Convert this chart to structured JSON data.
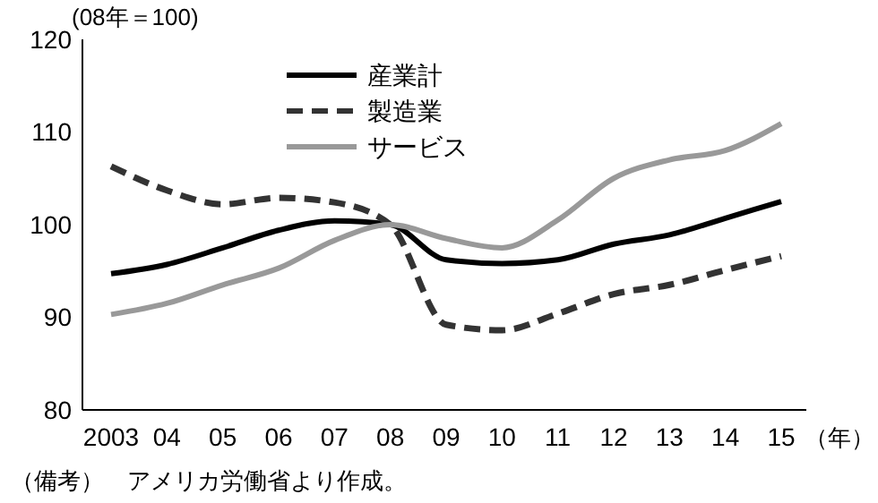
{
  "chart_data": {
    "type": "line",
    "ylabel": "(08年＝100)",
    "xlabel": "（年）",
    "categories": [
      "2003",
      "04",
      "05",
      "06",
      "07",
      "08",
      "09",
      "10",
      "11",
      "12",
      "13",
      "14",
      "15"
    ],
    "series": [
      {
        "name": "産業計",
        "color": "#000000",
        "line_style": "solid",
        "values": [
          94.7,
          95.7,
          97.5,
          99.4,
          100.4,
          100,
          96.2,
          95.8,
          96.2,
          97.9,
          98.9,
          100.7,
          102.5
        ]
      },
      {
        "name": "製造業",
        "color": "#333333",
        "line_style": "dashed",
        "values": [
          106.3,
          103.7,
          102.2,
          102.9,
          102.4,
          100,
          89.2,
          88.6,
          90.4,
          92.5,
          93.5,
          95.1,
          96.6
        ]
      },
      {
        "name": "サービス",
        "color": "#999999",
        "line_style": "solid",
        "values": [
          90.3,
          91.5,
          93.5,
          95.3,
          98.3,
          100,
          98.5,
          97.5,
          100.5,
          105,
          107,
          108,
          110.9
        ]
      }
    ],
    "ylim": [
      80,
      120
    ],
    "yticks": [
      80,
      90,
      100,
      110,
      120
    ],
    "grid": false,
    "legend": "top",
    "marker": "none",
    "annotations": [
      "（備考）　アメリカ労働省より作成。"
    ]
  }
}
